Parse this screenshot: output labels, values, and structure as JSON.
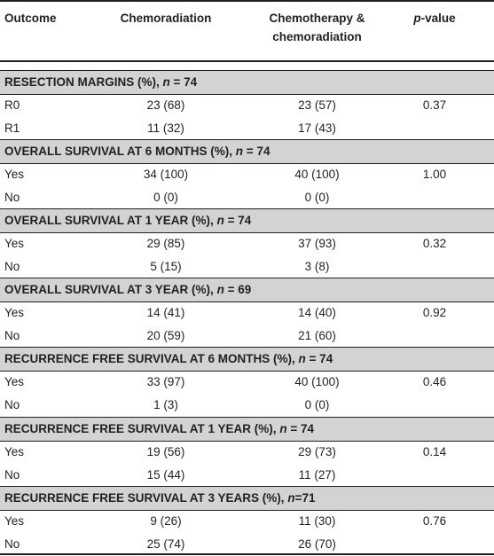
{
  "header": {
    "outcome": "Outcome",
    "chemoradiation": "Chemoradiation",
    "chemo_line1": "Chemotherapy &",
    "chemo_line2": "chemoradiation",
    "p_italic": "p",
    "p_rest": "-value"
  },
  "sections": [
    {
      "title": "RESECTION MARGINS (%),",
      "n_label": "n",
      "n_value": " = 74",
      "rows": [
        {
          "label": "R0",
          "chemorad": "23 (68)",
          "chemo": "23 (57)",
          "p": "0.37"
        },
        {
          "label": "R1",
          "chemorad": "11 (32)",
          "chemo": "17 (43)",
          "p": ""
        }
      ]
    },
    {
      "title": "OVERALL SURVIVAL AT 6 MONTHS (%),",
      "n_label": "n",
      "n_value": " = 74",
      "rows": [
        {
          "label": "Yes",
          "chemorad": "34 (100)",
          "chemo": "40 (100)",
          "p": "1.00"
        },
        {
          "label": "No",
          "chemorad": "0 (0)",
          "chemo": "0 (0)",
          "p": ""
        }
      ]
    },
    {
      "title": "OVERALL SURVIVAL AT 1 YEAR (%),",
      "n_label": "n",
      "n_value": " = 74",
      "rows": [
        {
          "label": "Yes",
          "chemorad": "29 (85)",
          "chemo": "37 (93)",
          "p": "0.32"
        },
        {
          "label": "No",
          "chemorad": "5 (15)",
          "chemo": "3 (8)",
          "p": ""
        }
      ]
    },
    {
      "title": "OVERALL SURVIVAL AT 3 YEAR (%),",
      "n_label": "n",
      "n_value": " = 69",
      "rows": [
        {
          "label": "Yes",
          "chemorad": "14 (41)",
          "chemo": "14 (40)",
          "p": "0.92"
        },
        {
          "label": "No",
          "chemorad": "20 (59)",
          "chemo": "21 (60)",
          "p": ""
        }
      ]
    },
    {
      "title": "RECURRENCE FREE SURVIVAL AT 6 MONTHS (%),",
      "n_label": "n",
      "n_value": " = 74",
      "rows": [
        {
          "label": "Yes",
          "chemorad": "33 (97)",
          "chemo": "40 (100)",
          "p": "0.46"
        },
        {
          "label": "No",
          "chemorad": "1 (3)",
          "chemo": "0 (0)",
          "p": ""
        }
      ]
    },
    {
      "title": "RECURRENCE FREE SURVIVAL AT 1 YEAR (%),",
      "n_label": "n",
      "n_value": " = 74",
      "rows": [
        {
          "label": "Yes",
          "chemorad": "19 (56)",
          "chemo": "29 (73)",
          "p": "0.14"
        },
        {
          "label": "No",
          "chemorad": "15 (44)",
          "chemo": "11 (27)",
          "p": ""
        }
      ]
    },
    {
      "title": "RECURRENCE FREE SURVIVAL AT 3 YEARS (%),",
      "n_label": "n",
      "n_value": "=71",
      "rows": [
        {
          "label": "Yes",
          "chemorad": "9 (26)",
          "chemo": "11 (30)",
          "p": "0.76"
        },
        {
          "label": "No",
          "chemorad": "25 (74)",
          "chemo": "26 (70)",
          "p": ""
        }
      ]
    }
  ]
}
